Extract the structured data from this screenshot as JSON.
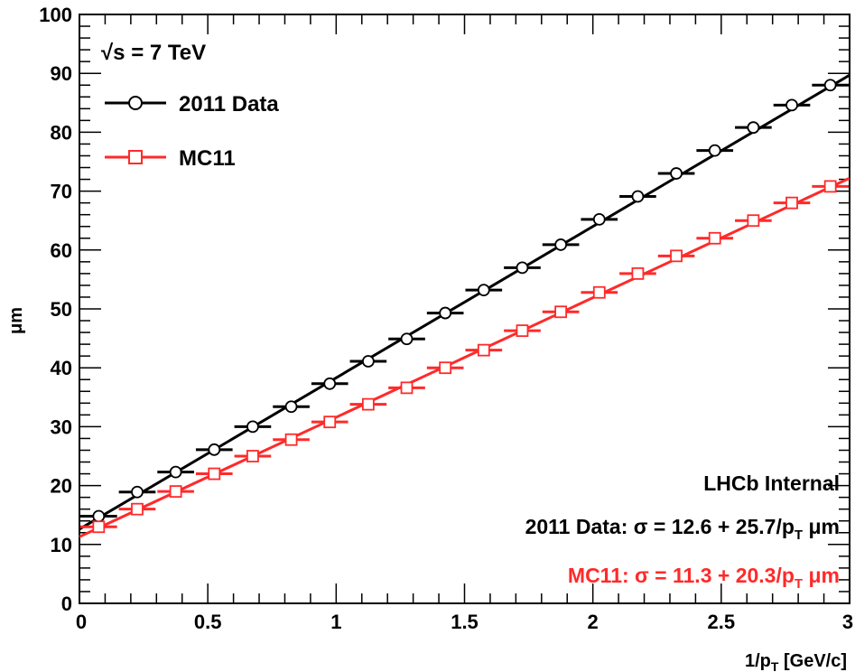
{
  "chart_data": {
    "type": "scatter",
    "xlabel_prefix": "1/p",
    "xlabel_sub": "T",
    "xlabel_suffix": " [GeV/c]",
    "ylabel": "μm",
    "xlim": [
      0,
      3
    ],
    "ylim": [
      0,
      100
    ],
    "x_ticks": [
      0,
      0.5,
      1,
      1.5,
      2,
      2.5,
      3
    ],
    "x_tick_labels": [
      "0",
      "0.5",
      "1",
      "1.5",
      "2",
      "2.5",
      "3"
    ],
    "y_ticks": [
      0,
      10,
      20,
      30,
      40,
      50,
      60,
      70,
      80,
      90,
      100
    ],
    "y_tick_labels": [
      "0",
      "10",
      "20",
      "30",
      "40",
      "50",
      "60",
      "70",
      "80",
      "90",
      "100"
    ],
    "x_bin_edges": [
      0,
      0.15,
      0.3,
      0.45,
      0.6,
      0.75,
      0.9,
      1.05,
      1.2,
      1.35,
      1.5,
      1.65,
      1.8,
      1.95,
      2.1,
      2.25,
      2.4,
      2.55,
      2.7,
      2.85,
      3.0
    ],
    "x": [
      0.075,
      0.225,
      0.375,
      0.525,
      0.675,
      0.825,
      0.975,
      1.125,
      1.275,
      1.425,
      1.575,
      1.725,
      1.875,
      2.025,
      2.175,
      2.325,
      2.475,
      2.625,
      2.775,
      2.925
    ],
    "series": [
      {
        "name": "2011 Data",
        "color": "#000000",
        "marker": "circle",
        "values": [
          14.8,
          18.9,
          22.3,
          26.1,
          30.0,
          33.4,
          37.3,
          41.1,
          44.9,
          49.3,
          53.2,
          57.0,
          60.9,
          65.2,
          69.1,
          73.0,
          76.9,
          80.8,
          84.6,
          88.0
        ],
        "fit": {
          "intercept": 12.6,
          "slope": 25.7
        }
      },
      {
        "name": "MC11",
        "color": "#ff2a2a",
        "marker": "square",
        "values": [
          13.0,
          16.0,
          19.0,
          22.0,
          25.0,
          27.8,
          30.8,
          33.8,
          36.6,
          40.0,
          43.0,
          46.3,
          49.5,
          52.8,
          56.0,
          59.0,
          62.0,
          65.0,
          68.0,
          70.8
        ],
        "fit": {
          "intercept": 11.3,
          "slope": 20.3
        }
      }
    ],
    "legend": {
      "energy_label": "√s = 7 TeV",
      "placement": "top-left"
    },
    "annotations": {
      "lhcb": "LHCb Internal",
      "data_fit_prefix": "2011 Data: σ = 12.6 + 25.7/p",
      "data_fit_suffix": " μm",
      "mc_fit_prefix": "MC11: σ = 11.3 + 20.3/p",
      "mc_fit_suffix": " μm",
      "sub_t": "T"
    }
  }
}
